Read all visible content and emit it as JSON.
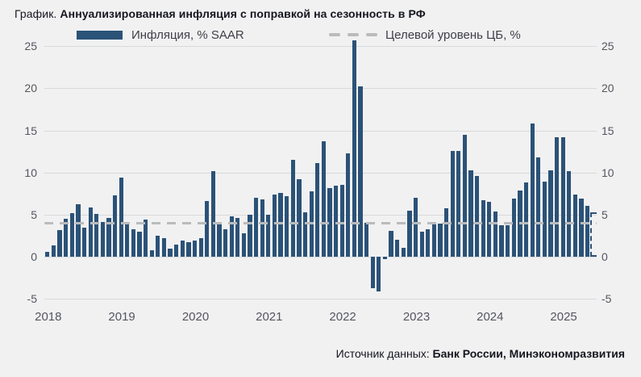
{
  "title": {
    "prefix": "График.",
    "main": "Аннуализированная инфляция с поправкой на сезонность в РФ"
  },
  "legend": {
    "bars_label": "Инфляция, % SAAR",
    "target_label": "Целевой уровень ЦБ, %"
  },
  "source": {
    "prefix": "Источник данных:",
    "main": "Банк России, Минэкономразвития"
  },
  "colors": {
    "background": "#f1f1f2",
    "bar": "#2b5277",
    "target_dash": "#b9bbbd",
    "gridline": "#d8d9da",
    "axis_text": "#55565e",
    "legend_text": "#3e3f47",
    "title_text": "#15161f"
  },
  "chart_data": {
    "type": "bar",
    "title": "Аннуализированная инфляция с поправкой на сезонность в РФ",
    "series_name": "Инфляция, % SAAR",
    "unit": "% SAAR",
    "x_tick_labels": [
      "2018",
      "2019",
      "2020",
      "2021",
      "2022",
      "2023",
      "2024",
      "2025"
    ],
    "y_ticks": [
      25,
      20,
      15,
      10,
      5,
      0,
      -5
    ],
    "ylim": [
      -5,
      25.8
    ],
    "grid": true,
    "axis_labels_both_sides": true,
    "legend_position": "top",
    "target_line": {
      "label": "Целевой уровень ЦБ, %",
      "value": 4
    },
    "start_year": 2018,
    "values_by_year": {
      "2018": [
        0.6,
        1.3,
        3.2,
        4.5,
        5.2,
        6.2,
        3.5,
        5.9,
        5.1,
        4.1,
        4.6,
        7.3
      ],
      "2019": [
        9.4,
        4.0,
        3.3,
        3.0,
        4.4,
        0.8,
        2.5,
        2.2,
        1.0,
        1.4,
        1.9,
        1.7
      ],
      "2020": [
        1.9,
        2.2,
        6.6,
        10.2,
        3.8,
        3.3,
        4.8,
        4.6,
        2.8,
        5.0,
        7.0,
        6.8
      ],
      "2021": [
        5.0,
        7.4,
        7.6,
        7.2,
        11.5,
        9.2,
        5.3,
        7.8,
        11.1,
        13.7,
        8.2,
        8.4
      ],
      "2022": [
        8.5,
        12.3,
        25.8,
        20.2,
        4.0,
        -3.7,
        -4.1,
        -0.3,
        3.1,
        2.0,
        1.1,
        5.5
      ],
      "2023": [
        7.0,
        3.0,
        3.3,
        4.1,
        3.9,
        5.8,
        12.6,
        12.6,
        14.5,
        10.3,
        9.6,
        6.7
      ],
      "2024": [
        6.5,
        5.4,
        3.7,
        3.7,
        6.9,
        7.9,
        8.8,
        15.8,
        11.8,
        8.9,
        10.3,
        14.2
      ],
      "2025": [
        14.2,
        10.2,
        7.4,
        6.9,
        6.0
      ]
    },
    "forecast_bar_value": 5.3,
    "forecast_bar_style": "dashed-outline"
  }
}
